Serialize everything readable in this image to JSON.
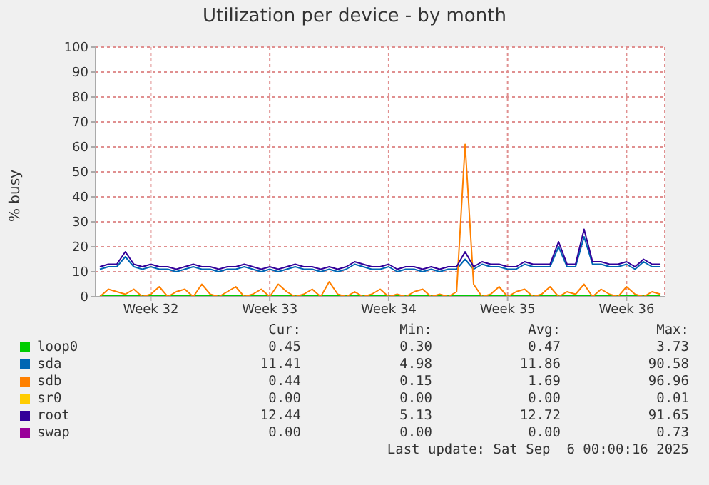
{
  "chart_data": {
    "type": "line",
    "title": "Utilization per device - by month",
    "ylabel": "% busy",
    "categories": [
      null,
      null,
      null,
      null,
      null,
      null,
      "Week 32",
      null,
      null,
      null,
      null,
      null,
      null,
      null,
      null,
      null,
      null,
      null,
      null,
      null,
      "Week 33",
      null,
      null,
      null,
      null,
      null,
      null,
      null,
      null,
      null,
      null,
      null,
      null,
      null,
      "Week 34",
      null,
      null,
      null,
      null,
      null,
      null,
      null,
      null,
      null,
      null,
      null,
      null,
      null,
      "Week 35",
      null,
      null,
      null,
      null,
      null,
      null,
      null,
      null,
      null,
      null,
      null,
      null,
      null,
      "Week 36",
      null,
      null,
      null,
      null
    ],
    "ylim": [
      0,
      100
    ],
    "yticks": [
      0,
      10,
      20,
      30,
      40,
      50,
      60,
      70,
      80,
      90,
      100
    ],
    "grid": true,
    "legend": "bottom",
    "marker": "none",
    "line_style": "solid",
    "series": [
      {
        "name": "loop0",
        "color": "#00cc00",
        "values": [
          0.5,
          0.5,
          0.5,
          0.5,
          0.5,
          0.5,
          0.5,
          0.5,
          0.5,
          0.5,
          0.5,
          0.5,
          0.5,
          0.5,
          0.5,
          0.5,
          0.5,
          0.5,
          0.5,
          0.5,
          0.5,
          0.5,
          0.5,
          0.5,
          0.5,
          0.5,
          0.5,
          0.5,
          0.5,
          0.5,
          0.5,
          0.5,
          0.5,
          0.5,
          0.5,
          0.5,
          0.5,
          0.5,
          0.5,
          0.5,
          0.5,
          0.5,
          0.5,
          0.5,
          0.5,
          0.5,
          0.5,
          0.5,
          0.5,
          0.5,
          0.5,
          0.5,
          0.5,
          0.5,
          0.5,
          0.5,
          0.5,
          0.5,
          0.5,
          0.5,
          0.5,
          0.5,
          0.5,
          0.5,
          0.5,
          0.5,
          0.5
        ]
      },
      {
        "name": "sda",
        "color": "#0066b3",
        "values": [
          11,
          12,
          12,
          16,
          12,
          11,
          12,
          11,
          11,
          10,
          11,
          12,
          11,
          11,
          10,
          11,
          11,
          12,
          11,
          10,
          11,
          10,
          11,
          12,
          11,
          11,
          10,
          11,
          10,
          11,
          13,
          12,
          11,
          11,
          12,
          10,
          11,
          11,
          10,
          11,
          10,
          11,
          11,
          15,
          11,
          13,
          12,
          12,
          11,
          11,
          13,
          12,
          12,
          12,
          20,
          12,
          12,
          24,
          13,
          13,
          12,
          12,
          13,
          11,
          14,
          12,
          12
        ]
      },
      {
        "name": "sdb",
        "color": "#ff8000",
        "values": [
          0,
          3,
          2,
          1,
          3,
          0,
          1,
          4,
          0,
          2,
          3,
          0,
          5,
          1,
          0,
          2,
          4,
          0,
          1,
          3,
          0,
          5,
          2,
          0,
          1,
          3,
          0,
          6,
          1,
          0,
          2,
          0,
          1,
          3,
          0,
          1,
          0,
          2,
          3,
          0,
          1,
          0,
          2,
          61,
          5,
          0,
          1,
          4,
          0,
          2,
          3,
          0,
          1,
          4,
          0,
          2,
          1,
          5,
          0,
          3,
          1,
          0,
          4,
          1,
          0,
          2,
          1
        ]
      },
      {
        "name": "sr0",
        "color": "#ffcc00",
        "values": [
          null,
          null,
          null,
          null,
          null,
          null,
          null,
          null,
          null,
          null,
          null,
          null,
          null,
          null,
          null,
          null,
          null,
          null,
          null,
          null,
          null,
          null,
          null,
          null,
          null,
          null,
          null,
          null,
          null,
          null,
          null,
          null,
          null,
          null,
          null,
          null,
          null,
          null,
          null,
          null,
          null,
          null,
          null,
          null,
          null,
          null,
          null,
          null,
          null,
          null,
          null,
          null,
          null,
          null,
          null,
          null,
          null,
          null,
          null,
          null,
          null,
          null,
          null,
          null,
          null,
          null,
          null
        ]
      },
      {
        "name": "root",
        "color": "#330099",
        "values": [
          12,
          13,
          13,
          18,
          13,
          12,
          13,
          12,
          12,
          11,
          12,
          13,
          12,
          12,
          11,
          12,
          12,
          13,
          12,
          11,
          12,
          11,
          12,
          13,
          12,
          12,
          11,
          12,
          11,
          12,
          14,
          13,
          12,
          12,
          13,
          11,
          12,
          12,
          11,
          12,
          11,
          12,
          12,
          18,
          12,
          14,
          13,
          13,
          12,
          12,
          14,
          13,
          13,
          13,
          22,
          13,
          13,
          27,
          14,
          14,
          13,
          13,
          14,
          12,
          15,
          13,
          13
        ]
      },
      {
        "name": "swap",
        "color": "#990099",
        "values": [
          null,
          null,
          null,
          null,
          null,
          null,
          null,
          null,
          null,
          null,
          null,
          null,
          null,
          null,
          null,
          null,
          null,
          null,
          null,
          null,
          null,
          null,
          null,
          null,
          null,
          null,
          null,
          null,
          null,
          null,
          null,
          null,
          null,
          null,
          null,
          null,
          null,
          null,
          null,
          null,
          null,
          null,
          null,
          null,
          null,
          null,
          null,
          null,
          null,
          null,
          null,
          null,
          null,
          null,
          null,
          null,
          null,
          null,
          null,
          null,
          null,
          null,
          null,
          null,
          null,
          null,
          null
        ]
      }
    ],
    "annotations": [
      "Cur:",
      "Min:",
      "Avg:",
      "Max:",
      "0.45",
      "0.30",
      "0.47",
      "3.73",
      "11.41",
      "4.98",
      "11.86",
      "90.58",
      "0.44",
      "0.15",
      "1.69",
      "96.96",
      "0.00",
      "0.00",
      "0.00",
      "0.01",
      "12.44",
      "5.13",
      "12.72",
      "91.65",
      "0.00",
      "0.00",
      "0.00",
      "0.73",
      "Last update: Sat Sep  6 00:00:16 2025"
    ]
  }
}
